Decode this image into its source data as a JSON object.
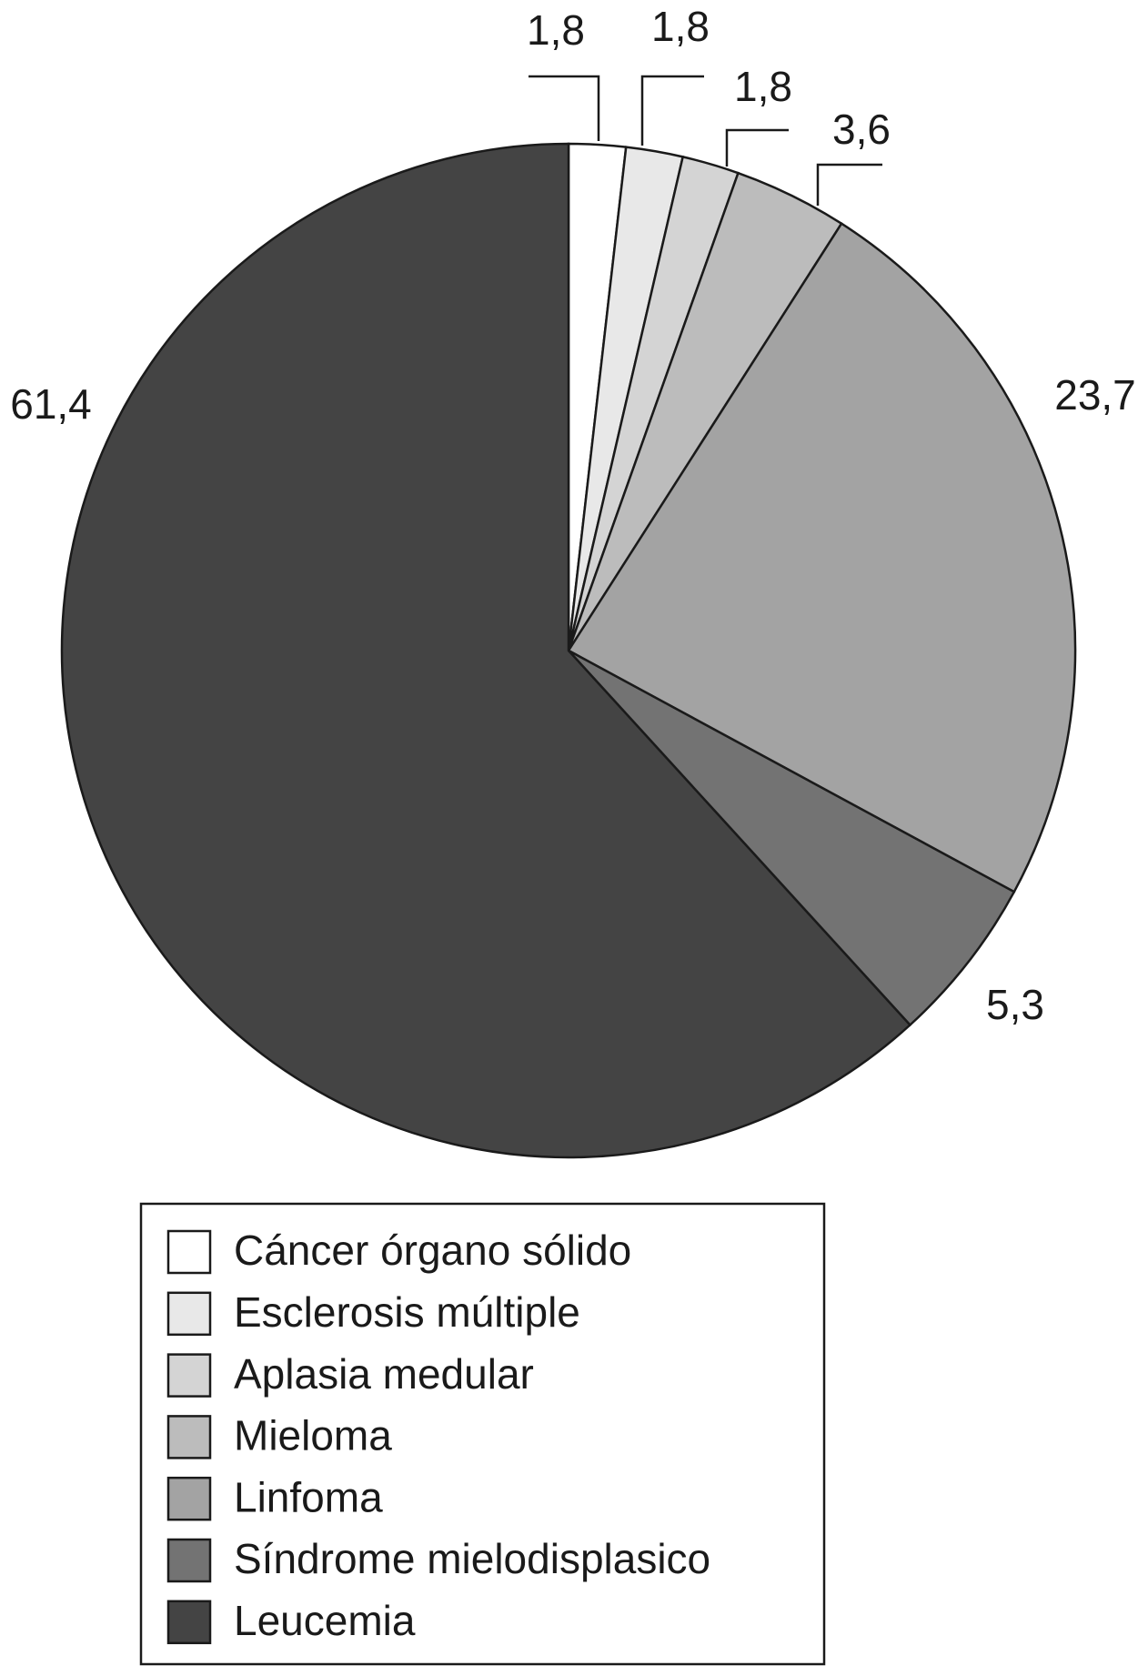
{
  "chart_data": {
    "type": "pie",
    "categories": [
      "Cáncer órgano sólido",
      "Esclerosis múltiple",
      "Aplasia medular",
      "Mieloma",
      "Linfoma",
      "Síndrome mielodisplasico",
      "Leucemia"
    ],
    "values": [
      1.8,
      1.8,
      1.8,
      3.6,
      23.7,
      5.3,
      61.4
    ],
    "value_labels": [
      "1,8",
      "1,8",
      "1,8",
      "3,6",
      "23,7",
      "5,3",
      "61,4"
    ],
    "colors": [
      "#ffffff",
      "#e8e8e8",
      "#d4d4d4",
      "#bcbcbc",
      "#a3a3a3",
      "#737373",
      "#444444"
    ]
  }
}
